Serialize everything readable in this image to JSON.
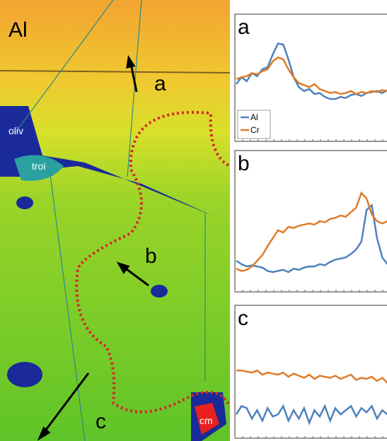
{
  "map": {
    "title": "Al",
    "markers": [
      "a",
      "b",
      "c"
    ],
    "minerals": [
      "oliv",
      "troi",
      "cm"
    ]
  },
  "chart_data": [
    {
      "type": "line",
      "title": "a",
      "xlim": [
        0,
        30
      ],
      "ylim": [
        0,
        100
      ],
      "x": [
        0,
        1,
        2,
        3,
        4,
        5,
        6,
        7,
        8,
        9,
        10,
        11,
        12,
        13,
        14,
        15,
        16,
        17,
        18,
        19,
        20,
        21,
        22,
        23,
        24,
        25,
        26,
        27,
        28,
        29
      ],
      "legend": "lower left",
      "series": [
        {
          "name": "Al",
          "color": "#4f81bd",
          "values": [
            55,
            62,
            58,
            66,
            63,
            70,
            72,
            85,
            96,
            95,
            80,
            62,
            52,
            48,
            50,
            45,
            46,
            42,
            40,
            40,
            42,
            41,
            44,
            45,
            43,
            46,
            47,
            48,
            46,
            49
          ]
        },
        {
          "name": "Cr",
          "color": "#e07b28",
          "values": [
            60,
            62,
            63,
            66,
            65,
            68,
            70,
            78,
            82,
            80,
            70,
            62,
            56,
            54,
            52,
            55,
            50,
            48,
            46,
            47,
            45,
            46,
            48,
            45,
            47,
            46,
            48,
            47,
            49,
            48
          ]
        }
      ]
    },
    {
      "type": "line",
      "title": "b",
      "xlim": [
        0,
        30
      ],
      "ylim": [
        0,
        100
      ],
      "x": [
        0,
        1,
        2,
        3,
        4,
        5,
        6,
        7,
        8,
        9,
        10,
        11,
        12,
        13,
        14,
        15,
        16,
        17,
        18,
        19,
        20,
        21,
        22,
        23,
        24,
        25,
        26,
        27,
        28,
        29,
        30
      ],
      "series": [
        {
          "name": "Al",
          "color": "#4f81bd",
          "values": [
            25,
            22,
            20,
            21,
            20,
            19,
            16,
            15,
            16,
            17,
            15,
            18,
            17,
            19,
            20,
            20,
            22,
            21,
            24,
            26,
            27,
            28,
            31,
            35,
            42,
            70,
            74,
            45,
            28,
            22,
            24
          ]
        },
        {
          "name": "Cr",
          "color": "#e07b28",
          "values": [
            18,
            16,
            17,
            20,
            25,
            30,
            38,
            45,
            52,
            50,
            55,
            54,
            56,
            57,
            58,
            57,
            60,
            59,
            62,
            63,
            65,
            64,
            68,
            72,
            85,
            80,
            66,
            60,
            58,
            60,
            57
          ]
        }
      ]
    },
    {
      "type": "line",
      "title": "c",
      "xlim": [
        0,
        30
      ],
      "ylim": [
        0,
        100
      ],
      "x": [
        0,
        1,
        2,
        3,
        4,
        5,
        6,
        7,
        8,
        9,
        10,
        11,
        12,
        13,
        14,
        15,
        16,
        17,
        18,
        19,
        20,
        21,
        22,
        23,
        24,
        25,
        26,
        27,
        28,
        29,
        30
      ],
      "series": [
        {
          "name": "Al",
          "color": "#4f81bd",
          "values": [
            20,
            28,
            26,
            16,
            24,
            14,
            26,
            18,
            20,
            28,
            14,
            24,
            16,
            26,
            12,
            24,
            18,
            28,
            14,
            26,
            20,
            24,
            28,
            18,
            26,
            22,
            28,
            16,
            24,
            20,
            26
          ]
        },
        {
          "name": "Cr",
          "color": "#e07b28",
          "values": [
            62,
            62,
            61,
            60,
            62,
            58,
            60,
            59,
            58,
            60,
            56,
            59,
            57,
            55,
            58,
            54,
            57,
            56,
            55,
            57,
            54,
            56,
            58,
            53,
            55,
            54,
            56,
            52,
            55,
            50,
            54
          ]
        }
      ]
    }
  ]
}
